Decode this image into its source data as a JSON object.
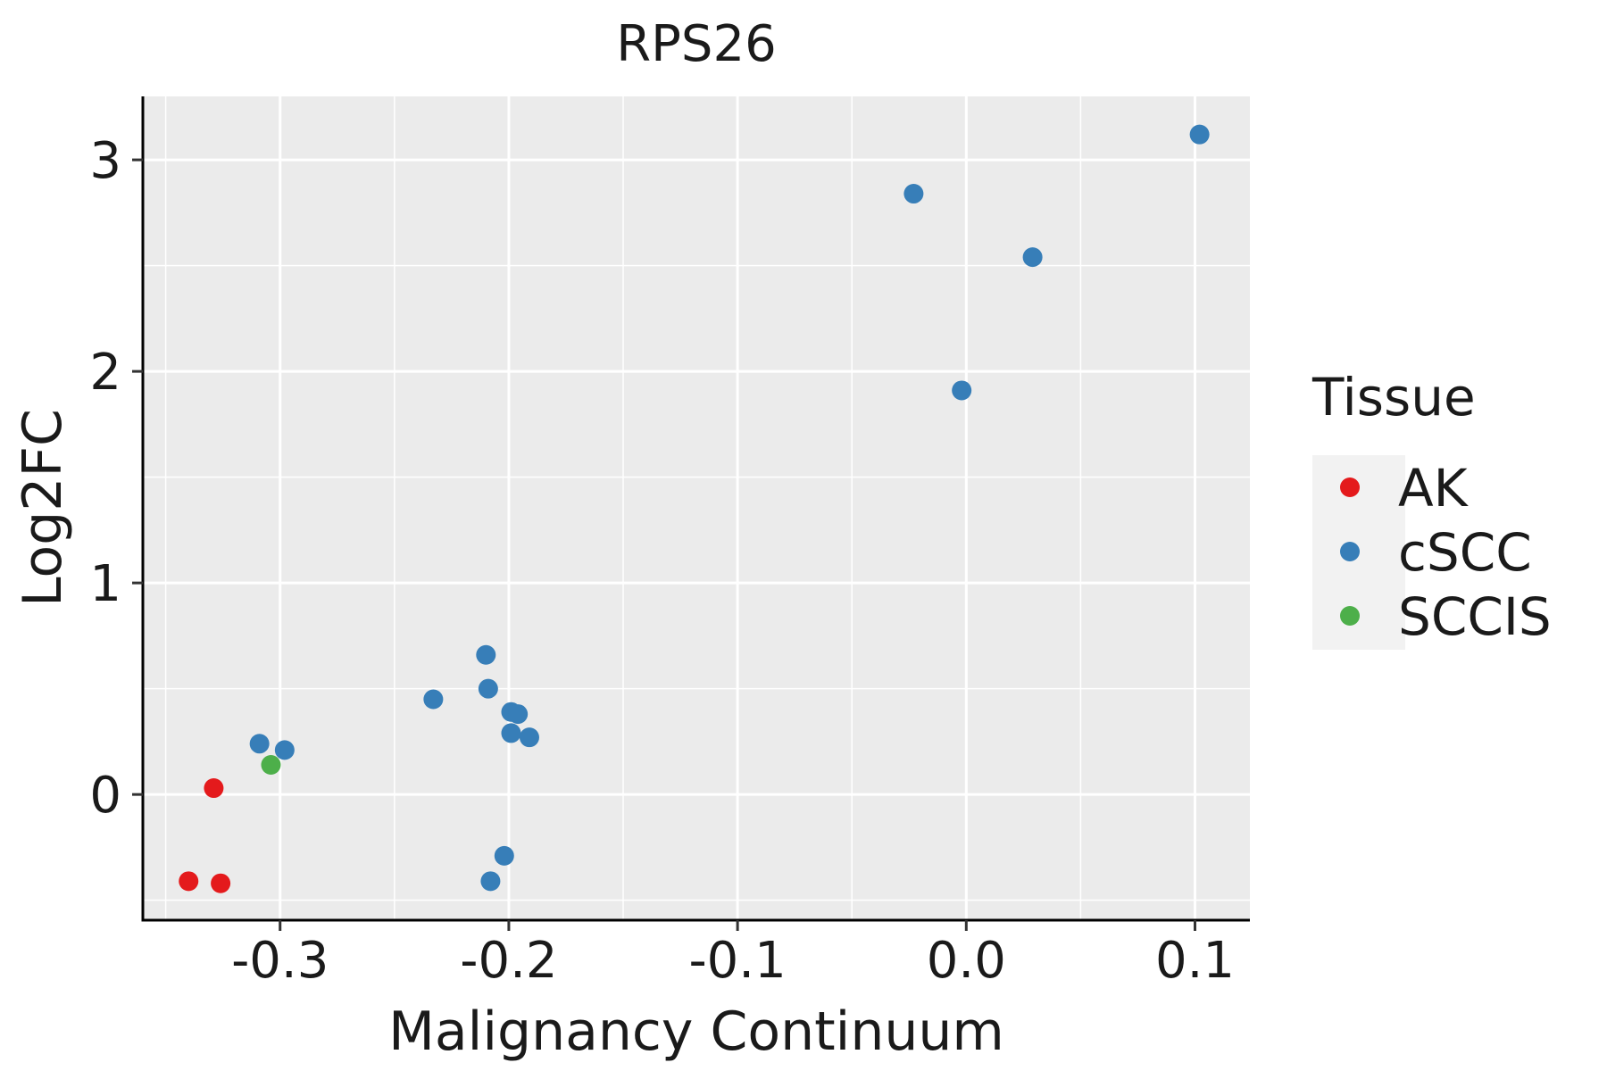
{
  "chart_data": {
    "type": "scatter",
    "title": "RPS26",
    "xlabel": "Malignancy Continuum",
    "ylabel": "Log2FC",
    "xlim": [
      -0.36,
      0.124
    ],
    "ylim": [
      -0.59,
      3.3
    ],
    "x_ticks": [
      -0.3,
      -0.2,
      -0.1,
      0.0,
      0.1
    ],
    "x_tick_labels": [
      "-0.3",
      "-0.2",
      "-0.1",
      "0.0",
      "0.1"
    ],
    "y_ticks": [
      0,
      1,
      2,
      3
    ],
    "y_tick_labels": [
      "0",
      "1",
      "2",
      "3"
    ],
    "grid": true,
    "legend": {
      "title": "Tissue",
      "placement": "right",
      "entries": [
        {
          "label": "AK",
          "color": "#e41a1c"
        },
        {
          "label": "cSCC",
          "color": "#377eb8"
        },
        {
          "label": "SCCIS",
          "color": "#4daf4a"
        }
      ]
    },
    "series": [
      {
        "name": "AK",
        "color": "#e41a1c",
        "points": [
          {
            "x": -0.329,
            "y": 0.03
          },
          {
            "x": -0.34,
            "y": -0.41
          },
          {
            "x": -0.326,
            "y": -0.42
          }
        ]
      },
      {
        "name": "cSCC",
        "color": "#377eb8",
        "points": [
          {
            "x": 0.102,
            "y": 3.12
          },
          {
            "x": -0.023,
            "y": 2.84
          },
          {
            "x": 0.029,
            "y": 2.54
          },
          {
            "x": -0.002,
            "y": 1.91
          },
          {
            "x": -0.21,
            "y": 0.66
          },
          {
            "x": -0.209,
            "y": 0.5
          },
          {
            "x": -0.233,
            "y": 0.45
          },
          {
            "x": -0.199,
            "y": 0.39
          },
          {
            "x": -0.196,
            "y": 0.38
          },
          {
            "x": -0.199,
            "y": 0.29
          },
          {
            "x": -0.191,
            "y": 0.27
          },
          {
            "x": -0.309,
            "y": 0.24
          },
          {
            "x": -0.298,
            "y": 0.21
          },
          {
            "x": -0.202,
            "y": -0.29
          },
          {
            "x": -0.208,
            "y": -0.41
          }
        ]
      },
      {
        "name": "SCCIS",
        "color": "#4daf4a",
        "points": [
          {
            "x": -0.304,
            "y": 0.14
          }
        ]
      }
    ]
  }
}
